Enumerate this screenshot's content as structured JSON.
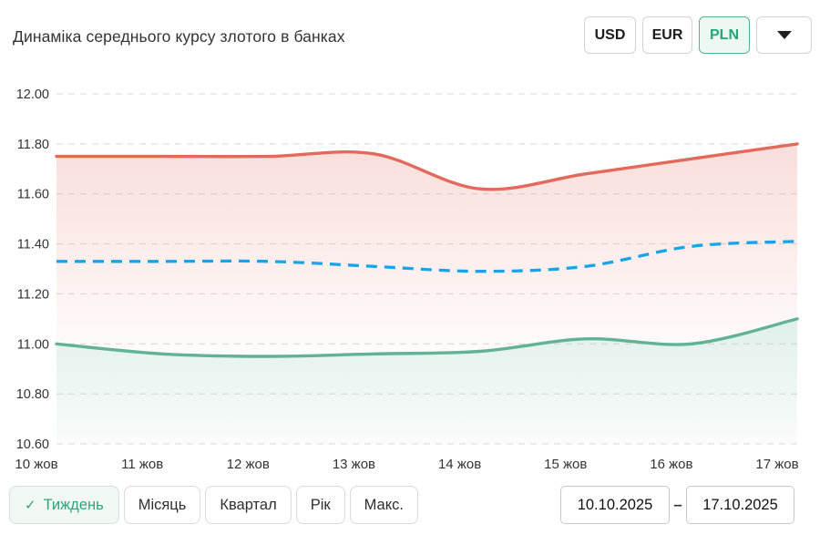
{
  "header": {
    "title": "Динаміка середнього курсу злотого в банках",
    "currency_buttons": [
      {
        "label": "USD",
        "active": false
      },
      {
        "label": "EUR",
        "active": false
      },
      {
        "label": "PLN",
        "active": true
      }
    ],
    "more_currencies_icon": "caret-down"
  },
  "chart_data": {
    "type": "line",
    "title": "Динаміка середнього курсу злотого в банках",
    "categories": [
      "10 жов",
      "11 жов",
      "12 жов",
      "13 жов",
      "14 жов",
      "15 жов",
      "16 жов",
      "17 жов"
    ],
    "series": [
      {
        "name": "red-solid-upper",
        "color": "#e2695b",
        "line_style": "solid",
        "area_fill": "between-upper-and-lower",
        "values": [
          11.75,
          11.75,
          11.75,
          11.76,
          11.62,
          11.68,
          11.74,
          11.8
        ]
      },
      {
        "name": "blue-dashed-middle",
        "color": "#18a3ea",
        "line_style": "dashed",
        "area_fill": "none",
        "values": [
          11.33,
          11.33,
          11.33,
          11.31,
          11.29,
          11.31,
          11.39,
          11.41
        ]
      },
      {
        "name": "green-solid-lower",
        "color": "#62b394",
        "line_style": "solid",
        "area_fill": "to-bottom",
        "values": [
          11.0,
          10.96,
          10.95,
          10.96,
          10.97,
          11.02,
          11.0,
          11.1
        ]
      }
    ],
    "ylim": [
      10.6,
      12.0
    ],
    "ytick_step": 0.2,
    "yticks": [
      "12.00",
      "11.80",
      "11.60",
      "11.40",
      "11.20",
      "11.00",
      "10.80",
      "10.60"
    ],
    "grid": "horizontal-dashed",
    "legend_position": "none"
  },
  "footer": {
    "period_buttons": [
      {
        "label": "Тиждень",
        "active": true,
        "icon": "check"
      },
      {
        "label": "Місяць",
        "active": false
      },
      {
        "label": "Квартал",
        "active": false
      },
      {
        "label": "Рік",
        "active": false
      },
      {
        "label": "Макс.",
        "active": false
      }
    ],
    "date_range": {
      "from": "10.10.2025",
      "separator": "–",
      "to": "17.10.2025"
    }
  },
  "icons": {
    "check": "✓"
  },
  "colors": {
    "accent_green": "#2aa57d",
    "active_button_bg": "#eef8f2",
    "grid_line": "#d9d9d9",
    "axis_text": "#333333"
  }
}
